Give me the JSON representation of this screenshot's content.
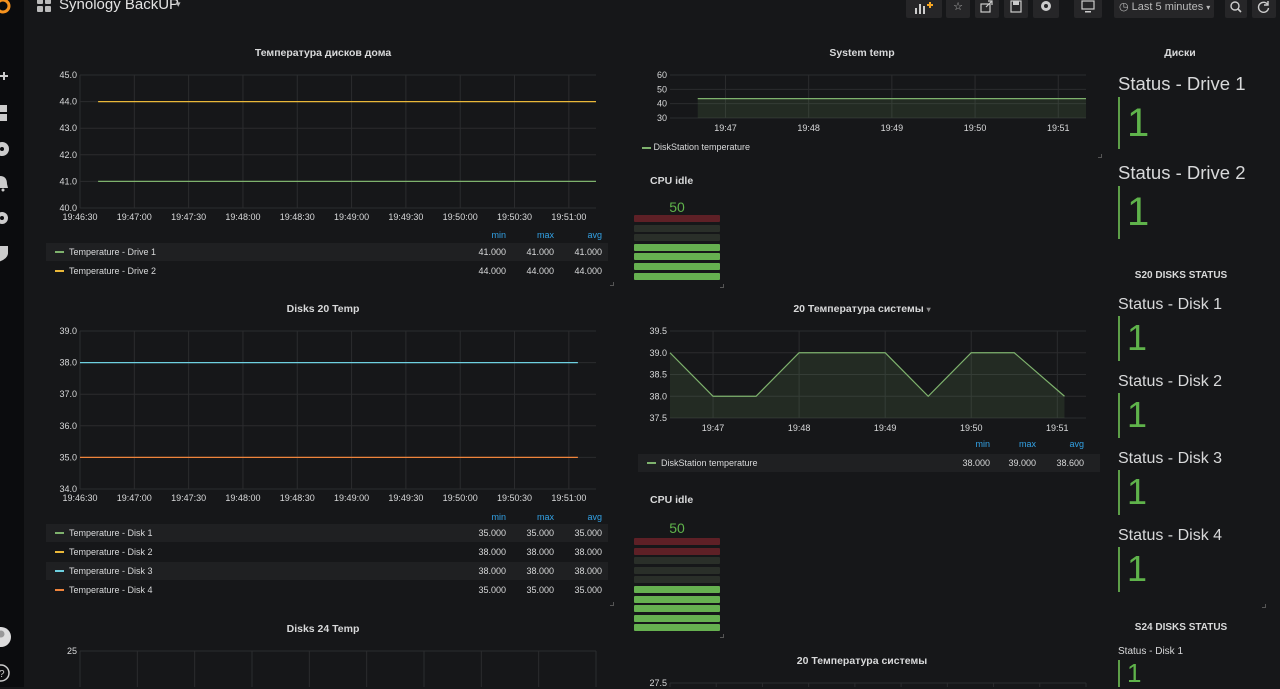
{
  "dashboard": {
    "title": "Synology BackUP",
    "time_range": "Last 5 minutes",
    "accent": "#5fb34b"
  },
  "sidebar": {
    "icons": [
      "grafana-logo-icon",
      "plus-icon",
      "dashboards-icon",
      "explore-icon",
      "alerting-bell-icon",
      "gear-icon",
      "shield-icon",
      "avatar",
      "help-icon"
    ]
  },
  "toolbar": {
    "icons": [
      "add-panel-icon",
      "star-icon",
      "share-icon",
      "save-icon",
      "settings-gear-icon",
      "tv-monitor-icon",
      "clock-icon",
      "search-icon",
      "refresh-icon"
    ]
  },
  "panels": {
    "drive_temp": {
      "title": "Температура дисков дома",
      "legend": {
        "head": [
          "min",
          "max",
          "avg"
        ],
        "rows": [
          {
            "name": "Temperature - Drive 1",
            "color": "#7eb26d",
            "min": "41.000",
            "max": "41.000",
            "avg": "41.000"
          },
          {
            "name": "Temperature - Drive 2",
            "color": "#eab839",
            "min": "44.000",
            "max": "44.000",
            "avg": "44.000"
          }
        ]
      }
    },
    "system_temp": {
      "title": "System temp",
      "legend_name": "DiskStation temperature"
    },
    "cpu_idle_1": {
      "title": "CPU idle",
      "value": "50"
    },
    "disks20_temp": {
      "title": "Disks 20 Temp",
      "legend": {
        "head": [
          "min",
          "max",
          "avg"
        ],
        "rows": [
          {
            "name": "Temperature - Disk 1",
            "color": "#7eb26d",
            "min": "35.000",
            "max": "35.000",
            "avg": "35.000"
          },
          {
            "name": "Temperature - Disk 2",
            "color": "#eab839",
            "min": "38.000",
            "max": "38.000",
            "avg": "38.000"
          },
          {
            "name": "Temperature - Disk 3",
            "color": "#6ed0e0",
            "min": "38.000",
            "max": "38.000",
            "avg": "38.000"
          },
          {
            "name": "Temperature - Disk 4",
            "color": "#ef843c",
            "min": "35.000",
            "max": "35.000",
            "avg": "35.000"
          }
        ]
      }
    },
    "temp20_system": {
      "title": "20 Температура системы",
      "legend": {
        "head": [
          "min",
          "max",
          "avg"
        ],
        "rows": [
          {
            "name": "DiskStation temperature",
            "color": "#7eb26d",
            "min": "38.000",
            "max": "39.000",
            "avg": "38.600"
          }
        ]
      }
    },
    "cpu_idle_2": {
      "title": "CPU idle",
      "value": "50"
    },
    "disks24_temp": {
      "title": "Disks 24 Temp"
    },
    "temp20_system_2": {
      "title": "20 Температура системы"
    },
    "disks_header": {
      "title": "Диски"
    },
    "drive_status": [
      {
        "label": "Status - Drive 1",
        "value": "1"
      },
      {
        "label": "Status - Drive 2",
        "value": "1"
      }
    ],
    "s20_header": {
      "title": "S20 DISKS STATUS"
    },
    "s20_status": [
      {
        "label": "Status - Disk 1",
        "value": "1"
      },
      {
        "label": "Status - Disk 2",
        "value": "1"
      },
      {
        "label": "Status - Disk 3",
        "value": "1"
      },
      {
        "label": "Status - Disk 4",
        "value": "1"
      }
    ],
    "s24_header": {
      "title": "S24 DISKS STATUS"
    },
    "s24_status": [
      {
        "label": "Status - Disk 1",
        "value": "1"
      }
    ]
  },
  "chart_data": [
    {
      "type": "line",
      "title": "Температура дисков дома",
      "x": [
        "19:46:30",
        "19:47:00",
        "19:47:30",
        "19:48:00",
        "19:48:30",
        "19:49:00",
        "19:49:30",
        "19:50:00",
        "19:50:30",
        "19:51:00"
      ],
      "x_range": [
        "19:46:30",
        "19:51:15"
      ],
      "ylim": [
        40,
        45
      ],
      "yticks": [
        "40.0",
        "41.0",
        "42.0",
        "43.0",
        "44.0",
        "45.0"
      ],
      "series": [
        {
          "name": "Temperature - Drive 1",
          "color": "#7eb26d",
          "points": [
            [
              "19:46:40",
              41
            ],
            [
              "19:51:15",
              41
            ]
          ]
        },
        {
          "name": "Temperature - Drive 2",
          "color": "#eab839",
          "points": [
            [
              "19:46:40",
              44
            ],
            [
              "19:51:15",
              44
            ]
          ]
        }
      ],
      "grid": true
    },
    {
      "type": "area",
      "title": "System temp",
      "x": [
        "19:47",
        "19:48",
        "19:49",
        "19:50",
        "19:51"
      ],
      "x_range": [
        "19:46:20",
        "19:51:20"
      ],
      "ylim": [
        30,
        60
      ],
      "yticks": [
        "30",
        "40",
        "50",
        "60"
      ],
      "series": [
        {
          "name": "DiskStation temperature",
          "color": "#7eb26d",
          "points": [
            [
              "19:46:40",
              43.5
            ],
            [
              "19:51:20",
              43.5
            ]
          ]
        }
      ],
      "grid": true
    },
    {
      "type": "line",
      "title": "Disks 20 Temp",
      "x": [
        "19:46:30",
        "19:47:00",
        "19:47:30",
        "19:48:00",
        "19:48:30",
        "19:49:00",
        "19:49:30",
        "19:50:00",
        "19:50:30",
        "19:51:00"
      ],
      "x_range": [
        "19:46:30",
        "19:51:15"
      ],
      "ylim": [
        34,
        39
      ],
      "yticks": [
        "34.0",
        "35.0",
        "36.0",
        "37.0",
        "38.0",
        "39.0"
      ],
      "series": [
        {
          "name": "Temperature - Disk 1",
          "color": "#7eb26d",
          "points": []
        },
        {
          "name": "Temperature - Disk 2",
          "color": "#eab839",
          "points": []
        },
        {
          "name": "Temperature - Disk 3",
          "color": "#6ed0e0",
          "points": [
            [
              "19:46:30",
              38
            ],
            [
              "19:51:05",
              38
            ]
          ]
        },
        {
          "name": "Temperature - Disk 4",
          "color": "#ef843c",
          "points": [
            [
              "19:46:30",
              35
            ],
            [
              "19:51:05",
              35
            ]
          ]
        }
      ],
      "grid": true
    },
    {
      "type": "area",
      "title": "20 Температура системы",
      "x": [
        "19:47",
        "19:48",
        "19:49",
        "19:50",
        "19:51"
      ],
      "x_range": [
        "19:46:30",
        "19:51:20"
      ],
      "ylim": [
        37.5,
        39.5
      ],
      "yticks": [
        "37.5",
        "38.0",
        "38.5",
        "39.0",
        "39.5"
      ],
      "series": [
        {
          "name": "DiskStation temperature",
          "color": "#7eb26d",
          "points": [
            [
              "19:46:30",
              39
            ],
            [
              "19:47:00",
              38
            ],
            [
              "19:47:30",
              38
            ],
            [
              "19:48:00",
              39
            ],
            [
              "19:49:00",
              39
            ],
            [
              "19:49:30",
              38
            ],
            [
              "19:50:00",
              39
            ],
            [
              "19:50:30",
              39
            ],
            [
              "19:51:05",
              38
            ]
          ]
        }
      ],
      "grid": true
    },
    {
      "type": "line",
      "title": "Disks 24 Temp",
      "yticks": [
        "25"
      ],
      "grid": true
    },
    {
      "type": "line",
      "title": "20 Температура системы",
      "yticks": [
        "27.5"
      ],
      "grid": true
    }
  ]
}
